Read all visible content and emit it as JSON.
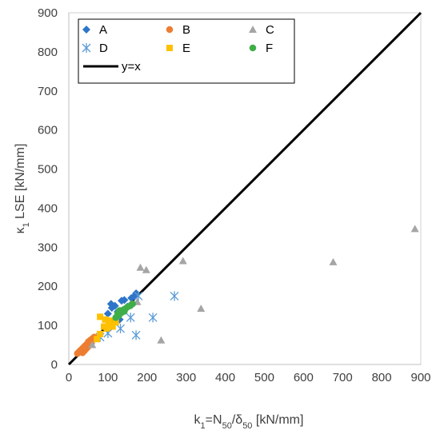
{
  "chart_data": {
    "type": "scatter",
    "title": "",
    "xlabel_parts": [
      "k",
      "1",
      "=N",
      "50",
      "/δ",
      "50",
      " [kN/mm]"
    ],
    "ylabel_parts": [
      "κ",
      "1",
      " LSE [kN/mm]"
    ],
    "xlim": [
      0,
      900
    ],
    "ylim": [
      0,
      900
    ],
    "xticks": [
      0,
      100,
      200,
      300,
      400,
      500,
      600,
      700,
      800,
      900
    ],
    "yticks": [
      0,
      100,
      200,
      300,
      400,
      500,
      600,
      700,
      800,
      900
    ],
    "grid": false,
    "legend_position": "top-left",
    "series": [
      {
        "name": "A",
        "marker": "diamond",
        "color": "#2e75c9",
        "points": [
          [
            108,
            155
          ],
          [
            110,
            145
          ],
          [
            118,
            150
          ],
          [
            135,
            163
          ],
          [
            142,
            165
          ],
          [
            160,
            170
          ],
          [
            172,
            182
          ],
          [
            168,
            175
          ],
          [
            100,
            130
          ],
          [
            125,
            135
          ],
          [
            130,
            115
          ],
          [
            150,
            148
          ]
        ]
      },
      {
        "name": "B",
        "marker": "circle",
        "color": "#ed7d31",
        "points": [
          [
            22,
            28
          ],
          [
            26,
            32
          ],
          [
            30,
            36
          ],
          [
            34,
            40
          ],
          [
            38,
            44
          ],
          [
            42,
            48
          ],
          [
            46,
            52
          ],
          [
            50,
            58
          ],
          [
            55,
            62
          ],
          [
            35,
            30
          ],
          [
            40,
            35
          ],
          [
            48,
            44
          ],
          [
            52,
            48
          ],
          [
            60,
            66
          ],
          [
            65,
            70
          ],
          [
            28,
            34
          ],
          [
            44,
            40
          ],
          [
            58,
            55
          ]
        ]
      },
      {
        "name": "C",
        "marker": "triangle",
        "color": "#a5a5a5",
        "points": [
          [
            183,
            248
          ],
          [
            198,
            242
          ],
          [
            292,
            265
          ],
          [
            676,
            262
          ],
          [
            885,
            347
          ],
          [
            338,
            143
          ],
          [
            236,
            62
          ],
          [
            175,
            160
          ],
          [
            60,
            50
          ]
        ]
      },
      {
        "name": "D",
        "marker": "asterisk",
        "color": "#5b9bd5",
        "points": [
          [
            270,
            175
          ],
          [
            215,
            120
          ],
          [
            158,
            120
          ],
          [
            132,
            92
          ],
          [
            172,
            75
          ],
          [
            100,
            80
          ],
          [
            178,
            175
          ],
          [
            80,
            70
          ]
        ]
      },
      {
        "name": "E",
        "marker": "square",
        "color": "#ffc000",
        "points": [
          [
            80,
            122
          ],
          [
            93,
            115
          ],
          [
            102,
            107
          ],
          [
            90,
            97
          ],
          [
            97,
            92
          ],
          [
            112,
            97
          ],
          [
            80,
            78
          ],
          [
            72,
            65
          ],
          [
            104,
            112
          ],
          [
            120,
            108
          ]
        ]
      },
      {
        "name": "F",
        "marker": "circle",
        "color": "#3fae49",
        "points": [
          [
            125,
            130
          ],
          [
            130,
            138
          ],
          [
            134,
            132
          ],
          [
            140,
            140
          ],
          [
            145,
            143
          ],
          [
            150,
            147
          ],
          [
            157,
            150
          ],
          [
            163,
            155
          ],
          [
            120,
            120
          ],
          [
            128,
            125
          ],
          [
            138,
            135
          ],
          [
            142,
            136
          ]
        ]
      }
    ],
    "reference_line": {
      "name": "y=x",
      "color": "#000000",
      "points": [
        [
          0,
          0
        ],
        [
          900,
          900
        ]
      ]
    }
  }
}
